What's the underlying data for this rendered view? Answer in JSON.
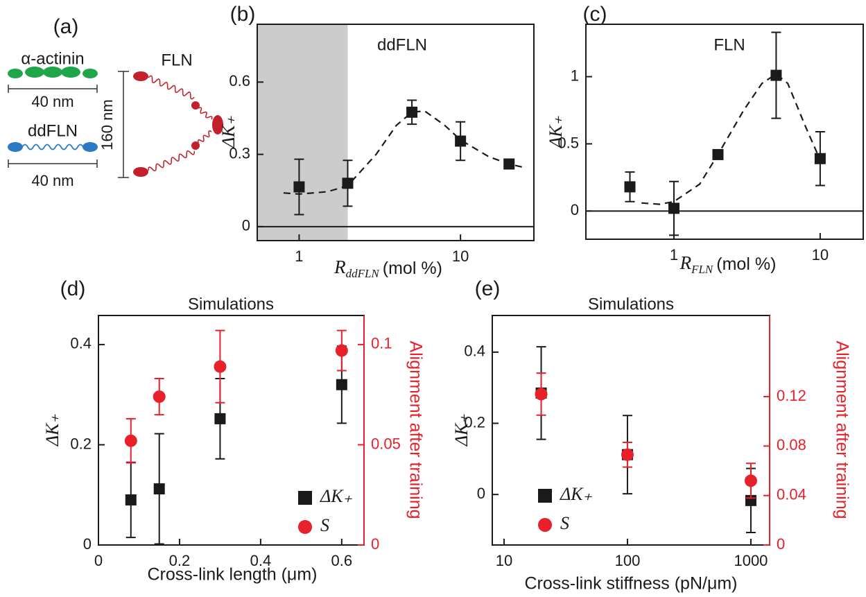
{
  "diagram": {
    "panel_label": "(a)",
    "alpha_actinin": "α-actinin",
    "alpha_actinin_length": "40 nm",
    "ddfln": "ddFLN",
    "ddfln_length": "40 nm",
    "fln": "FLN",
    "fln_length": "160 nm"
  },
  "chart_data": [
    {
      "type": "scatter",
      "panel_label": "(b)",
      "title": "ddFLN",
      "x_label": {
        "symbol": "R",
        "subscript": "ddFLN",
        "unit": "(mol %)"
      },
      "y_label": "ΔK₊",
      "xscale": "log",
      "xlim": [
        0.55,
        28.5
      ],
      "xticks": [
        1,
        10
      ],
      "ylim": [
        -0.058,
        0.84
      ],
      "yticks": [
        0,
        0.3,
        0.6
      ],
      "shaded_xrange": [
        0.55,
        2
      ],
      "hline": 0,
      "series": [
        {
          "color": "#1a1a1a",
          "marker": "square",
          "x": [
            1,
            2,
            5,
            10,
            20
          ],
          "values": [
            0.165,
            0.18,
            0.475,
            0.355,
            0.26
          ],
          "errors": [
            0.115,
            0.095,
            0.05,
            0.08,
            0.01
          ]
        }
      ],
      "fit": {
        "x": [
          0.8,
          1,
          1.5,
          2,
          3,
          4,
          5,
          6,
          8,
          10,
          15,
          20,
          25
        ],
        "values": [
          0.14,
          0.135,
          0.145,
          0.17,
          0.3,
          0.42,
          0.475,
          0.48,
          0.42,
          0.36,
          0.29,
          0.26,
          0.245
        ]
      }
    },
    {
      "type": "scatter",
      "panel_label": "(c)",
      "title": "FLN",
      "x_label": {
        "symbol": "R",
        "subscript": "FLN",
        "unit": "(mol %)"
      },
      "y_label": "ΔK₊",
      "xscale": "log",
      "xlim": [
        0.25,
        19.7
      ],
      "xticks": [
        1,
        10
      ],
      "ylim": [
        -0.21,
        1.39
      ],
      "yticks": [
        0,
        0.5,
        1
      ],
      "hline": 0,
      "series": [
        {
          "color": "#1a1a1a",
          "marker": "square",
          "x": [
            0.5,
            1,
            2,
            5,
            10
          ],
          "values": [
            0.18,
            0.02,
            0.42,
            1.01,
            0.39
          ],
          "errors": [
            0.11,
            0.2,
            0.01,
            0.32,
            0.2
          ]
        }
      ],
      "fit": {
        "x": [
          0.6,
          0.8,
          1,
          1.5,
          2,
          3,
          4,
          5,
          6,
          8,
          10
        ],
        "values": [
          0.06,
          0.05,
          0.07,
          0.2,
          0.42,
          0.75,
          0.95,
          1.02,
          0.95,
          0.62,
          0.38
        ]
      }
    },
    {
      "type": "scatter",
      "panel_label": "(d)",
      "title": "Simulations",
      "x_label": "Cross-link length (μm)",
      "y_label": "ΔK₊",
      "y2_label": "Alignment after training",
      "xlim": [
        0,
        0.655
      ],
      "xticks": [
        0,
        0.2,
        0.4,
        0.6
      ],
      "ylim": [
        0,
        0.458
      ],
      "yticks": [
        0,
        0.2,
        0.4
      ],
      "y2lim": [
        0,
        0.1145
      ],
      "y2ticks": [
        0,
        0.05,
        0.1
      ],
      "legend": "lower right",
      "series": [
        {
          "name": "ΔK₊",
          "color": "#1a1a1a",
          "marker": "square",
          "x": [
            0.08,
            0.15,
            0.3,
            0.6
          ],
          "values": [
            0.09,
            0.112,
            0.252,
            0.32
          ],
          "errors": [
            0.075,
            0.11,
            0.08,
            0.077
          ]
        },
        {
          "name": "S",
          "color": "#e8202a",
          "marker": "circle",
          "axis": "y2",
          "x": [
            0.08,
            0.15,
            0.3,
            0.6
          ],
          "values": [
            0.052,
            0.074,
            0.089,
            0.097
          ],
          "errors": [
            0.011,
            0.009,
            0.018,
            0.01
          ]
        }
      ]
    },
    {
      "type": "scatter",
      "panel_label": "(e)",
      "title": "Simulations",
      "x_label": "Cross-link stiffness (pN/μm)",
      "y_label": "ΔK₊",
      "y2_label": "Alignment after training",
      "xscale": "log",
      "xlim": [
        8.03,
        1419
      ],
      "xticks": [
        10,
        100,
        1000
      ],
      "ylim": [
        -0.142,
        0.503
      ],
      "yticks": [
        0,
        0.2,
        0.4
      ],
      "y2lim": [
        0,
        0.1856
      ],
      "y2ticks": [
        0,
        0.04,
        0.08,
        0.12
      ],
      "legend": "lower left",
      "series": [
        {
          "name": "ΔK₊",
          "color": "#1a1a1a",
          "marker": "square",
          "x": [
            20,
            100,
            1000
          ],
          "values": [
            0.285,
            0.112,
            -0.017
          ],
          "errors": [
            0.13,
            0.11,
            0.09
          ]
        },
        {
          "name": "S",
          "color": "#e8202a",
          "marker": "circle",
          "axis": "y2",
          "x": [
            20,
            100,
            1000
          ],
          "values": [
            0.122,
            0.073,
            0.052
          ],
          "errors": [
            0.017,
            0.01,
            0.014
          ]
        }
      ]
    }
  ]
}
